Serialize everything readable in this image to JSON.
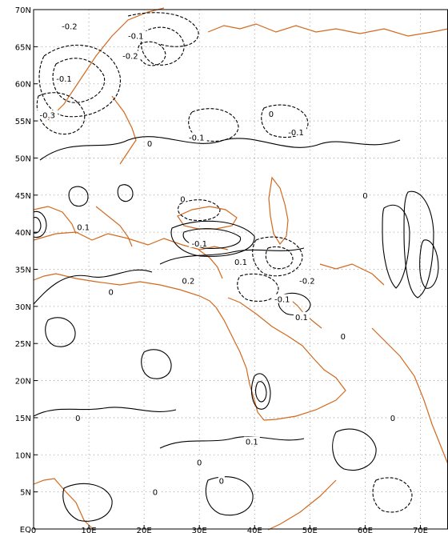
{
  "chart_data": {
    "type": "contour",
    "title": "",
    "xlabel": "",
    "ylabel": "",
    "xlim": [
      0,
      75
    ],
    "ylim": [
      0,
      70
    ],
    "x_ticks": [
      {
        "value": 0,
        "label": "0"
      },
      {
        "value": 10,
        "label": "10E"
      },
      {
        "value": 20,
        "label": "20E"
      },
      {
        "value": 30,
        "label": "30E"
      },
      {
        "value": 40,
        "label": "40E"
      },
      {
        "value": 50,
        "label": "50E"
      },
      {
        "value": 60,
        "label": "60E"
      },
      {
        "value": 70,
        "label": "70E"
      }
    ],
    "y_ticks": [
      {
        "value": 0,
        "label": "EQ"
      },
      {
        "value": 5,
        "label": "5N"
      },
      {
        "value": 10,
        "label": "10N"
      },
      {
        "value": 15,
        "label": "15N"
      },
      {
        "value": 20,
        "label": "20N"
      },
      {
        "value": 25,
        "label": "25N"
      },
      {
        "value": 30,
        "label": "30N"
      },
      {
        "value": 35,
        "label": "35N"
      },
      {
        "value": 40,
        "label": "40N"
      },
      {
        "value": 45,
        "label": "45N"
      },
      {
        "value": 50,
        "label": "50N"
      },
      {
        "value": 55,
        "label": "55N"
      },
      {
        "value": 60,
        "label": "60N"
      },
      {
        "value": 65,
        "label": "65N"
      },
      {
        "value": 70,
        "label": "70N"
      }
    ],
    "grid": true,
    "contour_color": "#000000",
    "coastline_color": "#d2691e",
    "contour_labels": [
      {
        "lon": 6.5,
        "lat": 67.8,
        "text": "-0.2"
      },
      {
        "lon": 18.5,
        "lat": 66.5,
        "text": "-0.1"
      },
      {
        "lon": 17.5,
        "lat": 63.8,
        "text": "-0.2"
      },
      {
        "lon": 5.5,
        "lat": 60.7,
        "text": "-0.1"
      },
      {
        "lon": 2.5,
        "lat": 55.8,
        "text": "-0.3"
      },
      {
        "lon": 29.5,
        "lat": 52.8,
        "text": "-0.1"
      },
      {
        "lon": 47.5,
        "lat": 53.5,
        "text": "-0.1"
      },
      {
        "lon": 9.0,
        "lat": 40.7,
        "text": "0.1"
      },
      {
        "lon": 30.0,
        "lat": 38.5,
        "text": "-0.1"
      },
      {
        "lon": 37.5,
        "lat": 36.0,
        "text": "0.1"
      },
      {
        "lon": 28.0,
        "lat": 33.5,
        "text": "0.2"
      },
      {
        "lon": 49.5,
        "lat": 33.5,
        "text": "-0.2"
      },
      {
        "lon": 45.0,
        "lat": 31.0,
        "text": "-0.1"
      },
      {
        "lon": 48.5,
        "lat": 28.6,
        "text": "0.1"
      },
      {
        "lon": 39.5,
        "lat": 11.8,
        "text": "0.1"
      },
      {
        "lon": 21.0,
        "lat": 52.0,
        "text": "0"
      },
      {
        "lon": 27.0,
        "lat": 44.5,
        "text": "0"
      },
      {
        "lon": 43.0,
        "lat": 56.0,
        "text": "0"
      },
      {
        "lon": 14.0,
        "lat": 32.0,
        "text": "0"
      },
      {
        "lon": 56.0,
        "lat": 26.0,
        "text": "0"
      },
      {
        "lon": 65.0,
        "lat": 15.0,
        "text": "0"
      },
      {
        "lon": 30.0,
        "lat": 9.0,
        "text": "0"
      },
      {
        "lon": 8.0,
        "lat": 15.0,
        "text": "0"
      },
      {
        "lon": 60.0,
        "lat": 45.0,
        "text": "0"
      },
      {
        "lon": 34.0,
        "lat": 6.5,
        "text": "0"
      },
      {
        "lon": 22.0,
        "lat": 5.0,
        "text": "0"
      }
    ]
  }
}
